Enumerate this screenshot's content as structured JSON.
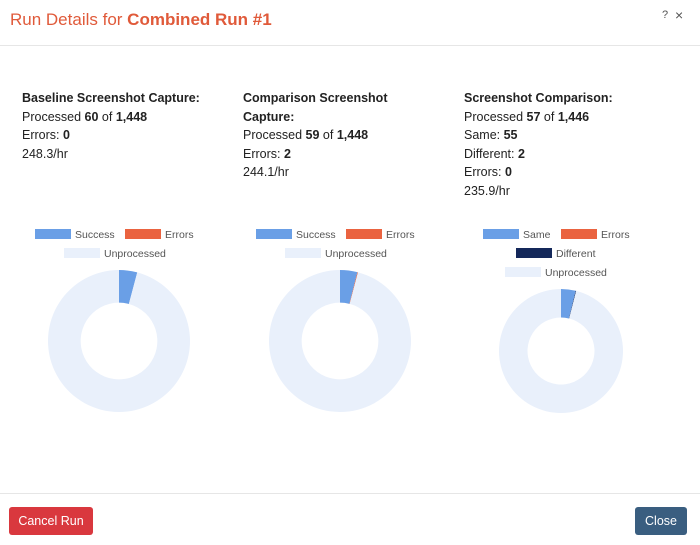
{
  "modal": {
    "title_prefix": "Run Details for ",
    "title_run": "Combined Run #1",
    "help_label": "?",
    "close_label": "×"
  },
  "colors": {
    "success": "#6a9fe6",
    "errors": "#ea6340",
    "different": "#14285a",
    "unprocessed": "#e9f0fb",
    "title": "#e05a3a",
    "cancel_button": "#d9383e",
    "close_button": "#3a5e80"
  },
  "baseline": {
    "heading": "Baseline Screenshot Capture:",
    "processed_label": "Processed ",
    "processed": "60",
    "of_label": " of ",
    "total": "1,448",
    "errors_label": "Errors: ",
    "errors": "0",
    "rate": "248.3/hr"
  },
  "comparison": {
    "heading_line1": "Comparison Screenshot",
    "heading_line2": "Capture:",
    "processed_label": "Processed ",
    "processed": "59",
    "of_label": " of ",
    "total": "1,448",
    "errors_label": "Errors: ",
    "errors": "2",
    "rate": "244.1/hr"
  },
  "screenshot_comparison": {
    "heading": "Screenshot Comparison:",
    "processed_label": "Processed ",
    "processed": "57",
    "of_label": " of ",
    "total": "1,446",
    "same_label": "Same: ",
    "same": "55",
    "different_label": "Different: ",
    "different": "2",
    "errors_label": "Errors: ",
    "errors": "0",
    "rate": "235.9/hr"
  },
  "chart_data": [
    {
      "type": "pie",
      "donut": true,
      "legend": [
        "Success",
        "Errors",
        "Unprocessed"
      ],
      "categories": [
        "Success",
        "Errors",
        "Unprocessed"
      ],
      "values": [
        60,
        0,
        1388
      ],
      "legend_position": "top"
    },
    {
      "type": "pie",
      "donut": true,
      "legend": [
        "Success",
        "Errors",
        "Unprocessed"
      ],
      "categories": [
        "Success",
        "Errors",
        "Unprocessed"
      ],
      "values": [
        57,
        2,
        1389
      ],
      "legend_position": "top"
    },
    {
      "type": "pie",
      "donut": true,
      "legend": [
        "Same",
        "Errors",
        "Different",
        "Unprocessed"
      ],
      "categories": [
        "Same",
        "Errors",
        "Different",
        "Unprocessed"
      ],
      "values": [
        55,
        0,
        2,
        1389
      ],
      "legend_position": "top"
    }
  ],
  "footer": {
    "cancel_label": "Cancel Run",
    "close_label": "Close"
  }
}
